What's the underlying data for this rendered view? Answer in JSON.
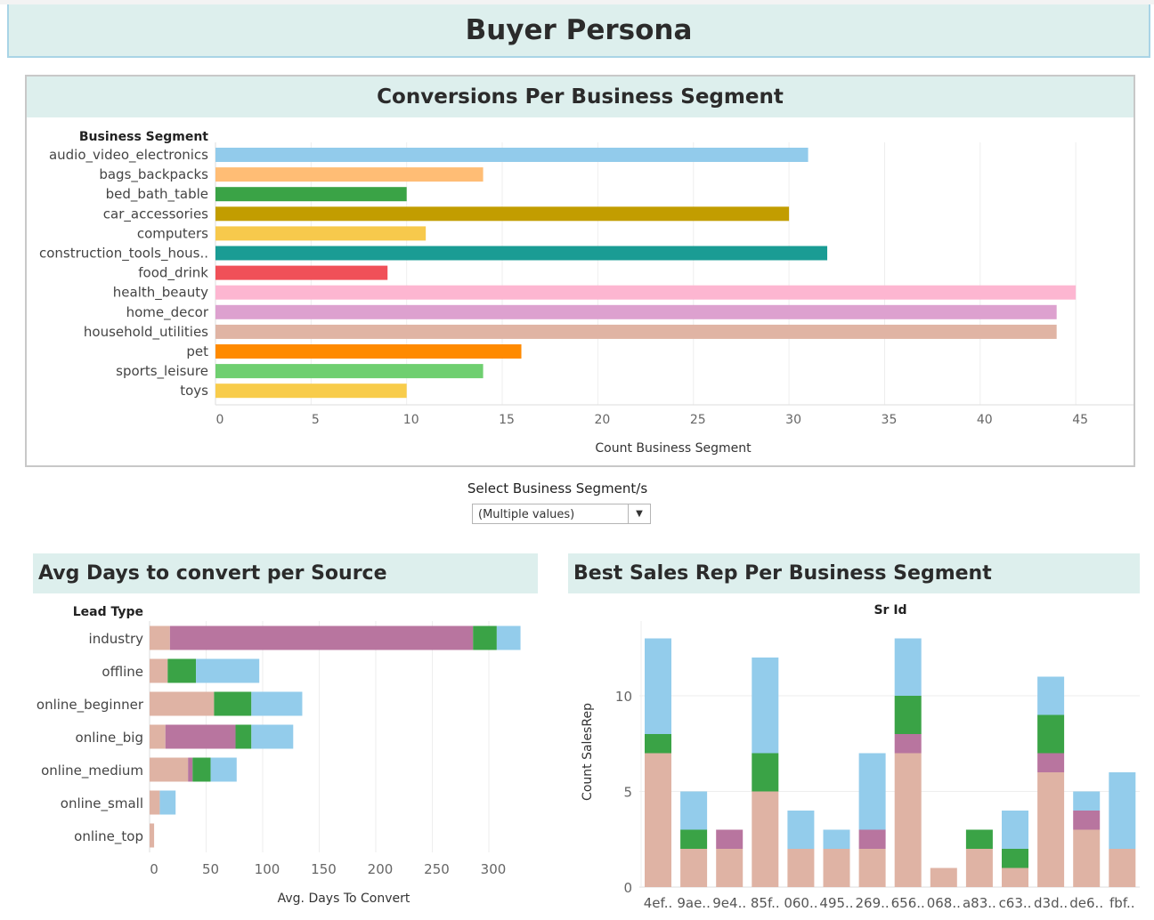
{
  "header": {
    "title": "Buyer Persona"
  },
  "filter": {
    "label": "Select Business Segment/s",
    "value": "(Multiple values)"
  },
  "chart_data": [
    {
      "id": "conversions",
      "type": "bar",
      "title": "Conversions Per Business Segment",
      "row_header": "Business Segment",
      "xlabel": "Count Business Segment",
      "xlim": [
        0,
        48
      ],
      "ticks": [
        0,
        5,
        10,
        15,
        20,
        25,
        30,
        35,
        40,
        45
      ],
      "categories": [
        "audio_video_electronics",
        "bags_backpacks",
        "bed_bath_table",
        "car_accessories",
        "computers",
        "construction_tools_hous..",
        "food_drink",
        "health_beauty",
        "home_decor",
        "household_utilities",
        "pet",
        "sports_leisure",
        "toys"
      ],
      "values": [
        31,
        14,
        10,
        30,
        11,
        32,
        9,
        45,
        44,
        44,
        16,
        14,
        10
      ],
      "colors": [
        "#92cbeb",
        "#ffbd75",
        "#3aa346",
        "#c29d00",
        "#f7c94c",
        "#1a9c94",
        "#f05058",
        "#fdb6d1",
        "#dda1cf",
        "#e0b4a4",
        "#ff8a00",
        "#6fcf70",
        "#f8cc4b"
      ]
    },
    {
      "id": "avg_days",
      "type": "bar",
      "stacked": true,
      "orientation": "horizontal",
      "title": "Avg Days to convert per Source",
      "row_header": "Lead Type",
      "xlabel": "Avg. Days To Convert",
      "xlim": [
        0,
        340
      ],
      "ticks": [
        0,
        50,
        100,
        150,
        200,
        250,
        300
      ],
      "categories": [
        "industry",
        "offline",
        "online_beginner",
        "online_big",
        "online_medium",
        "online_small",
        "online_top"
      ],
      "series": [
        {
          "color": "#dfb3a4",
          "values": [
            18,
            16,
            57,
            14,
            34,
            9,
            4
          ]
        },
        {
          "color": "#b8759f",
          "values": [
            268,
            0,
            0,
            62,
            4,
            0,
            0
          ]
        },
        {
          "color": "#3aa346",
          "values": [
            21,
            25,
            33,
            14,
            16,
            0,
            0
          ]
        },
        {
          "color": "#93cceb",
          "values": [
            21,
            56,
            45,
            37,
            23,
            14,
            0
          ]
        }
      ]
    },
    {
      "id": "best_rep",
      "type": "bar",
      "stacked": true,
      "orientation": "vertical",
      "title": "Best Sales Rep Per Business Segment",
      "col_header": "Sr Id",
      "ylabel": "Count SalesRep",
      "ylim": [
        0,
        14
      ],
      "ticks": [
        0,
        5,
        10
      ],
      "categories": [
        "4ef..",
        "9ae..",
        "9e4..",
        "85f..",
        "060..",
        "495..",
        "269..",
        "656..",
        "068..",
        "a83..",
        "c63..",
        "d3d..",
        "de6..",
        "fbf.."
      ],
      "series": [
        {
          "color": "#dfb3a4",
          "values": [
            7,
            2,
            2,
            5,
            2,
            2,
            2,
            7,
            1,
            2,
            1,
            6,
            3,
            2
          ]
        },
        {
          "color": "#b8759f",
          "values": [
            0,
            0,
            1,
            0,
            0,
            0,
            1,
            1,
            0,
            0,
            0,
            1,
            1,
            0
          ]
        },
        {
          "color": "#3aa346",
          "values": [
            1,
            1,
            0,
            2,
            0,
            0,
            0,
            2,
            0,
            1,
            1,
            2,
            0,
            0
          ]
        },
        {
          "color": "#93cceb",
          "values": [
            5,
            2,
            0,
            5,
            2,
            1,
            4,
            3,
            0,
            0,
            2,
            2,
            1,
            4
          ]
        }
      ]
    }
  ]
}
